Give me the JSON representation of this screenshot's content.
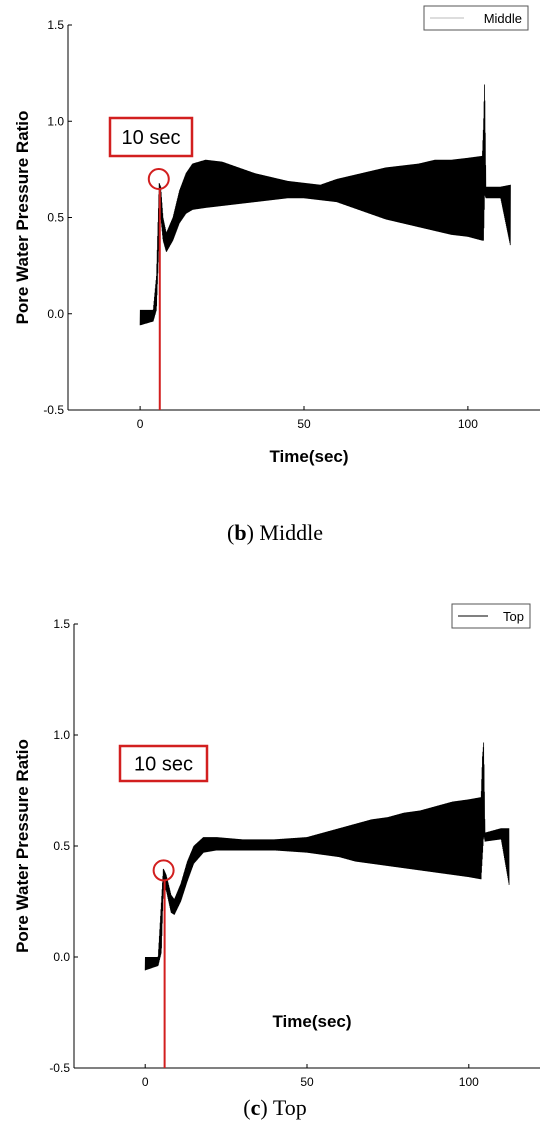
{
  "chart_data": [
    {
      "type": "line",
      "panel_caption": {
        "letter": "b",
        "text": "Middle"
      },
      "xlabel": "Time(sec)",
      "ylabel": "Pore Water Pressure Ratio",
      "xlim": [
        -22,
        122
      ],
      "ylim": [
        -0.5,
        1.5
      ],
      "xticks": [
        0,
        50,
        100
      ],
      "yticks": [
        -0.5,
        0.0,
        0.5,
        1.0,
        1.5
      ],
      "grid": false,
      "legend": {
        "position": "top-right",
        "entries": [
          "Middle"
        ]
      },
      "annotation": {
        "text": "10 sec",
        "marker_x": 6,
        "marker_y": 0.7
      },
      "series": [
        {
          "name": "Middle",
          "color": "#000000",
          "envelope_upper": [
            [
              0,
              0.02
            ],
            [
              4,
              0.02
            ],
            [
              5,
              0.2
            ],
            [
              5.8,
              0.68
            ],
            [
              6.3,
              0.66
            ],
            [
              7,
              0.5
            ],
            [
              8,
              0.42
            ],
            [
              10,
              0.5
            ],
            [
              12,
              0.64
            ],
            [
              14,
              0.73
            ],
            [
              16,
              0.78
            ],
            [
              20,
              0.8
            ],
            [
              25,
              0.79
            ],
            [
              30,
              0.76
            ],
            [
              35,
              0.73
            ],
            [
              40,
              0.71
            ],
            [
              45,
              0.69
            ],
            [
              50,
              0.68
            ],
            [
              55,
              0.67
            ],
            [
              60,
              0.7
            ],
            [
              65,
              0.72
            ],
            [
              70,
              0.74
            ],
            [
              75,
              0.76
            ],
            [
              80,
              0.77
            ],
            [
              85,
              0.78
            ],
            [
              90,
              0.8
            ],
            [
              95,
              0.8
            ],
            [
              100,
              0.81
            ],
            [
              104.4,
              0.82
            ],
            [
              104.8,
              1.0
            ],
            [
              105.1,
              1.22
            ],
            [
              105.5,
              0.66
            ],
            [
              110,
              0.66
            ],
            [
              113,
              0.67
            ]
          ],
          "envelope_lower": [
            [
              0,
              -0.06
            ],
            [
              4,
              -0.04
            ],
            [
              5,
              0.02
            ],
            [
              5.8,
              0.4
            ],
            [
              6.3,
              0.5
            ],
            [
              7,
              0.38
            ],
            [
              8,
              0.32
            ],
            [
              10,
              0.38
            ],
            [
              12,
              0.47
            ],
            [
              14,
              0.52
            ],
            [
              16,
              0.54
            ],
            [
              20,
              0.55
            ],
            [
              25,
              0.56
            ],
            [
              30,
              0.57
            ],
            [
              35,
              0.58
            ],
            [
              40,
              0.59
            ],
            [
              45,
              0.6
            ],
            [
              50,
              0.6
            ],
            [
              55,
              0.59
            ],
            [
              60,
              0.58
            ],
            [
              65,
              0.55
            ],
            [
              70,
              0.52
            ],
            [
              75,
              0.49
            ],
            [
              80,
              0.47
            ],
            [
              85,
              0.45
            ],
            [
              90,
              0.43
            ],
            [
              95,
              0.41
            ],
            [
              100,
              0.4
            ],
            [
              104.4,
              0.38
            ],
            [
              104.8,
              0.38
            ],
            [
              105.1,
              0.62
            ],
            [
              105.5,
              0.6
            ],
            [
              110,
              0.6
            ],
            [
              113,
              0.35
            ]
          ]
        }
      ]
    },
    {
      "type": "line",
      "panel_caption": {
        "letter": "c",
        "text": "Top"
      },
      "xlabel": "Time(sec)",
      "ylabel": "Pore Water Pressure Ratio",
      "xlim": [
        -22,
        122
      ],
      "ylim": [
        -0.5,
        1.5
      ],
      "xticks": [
        0,
        50,
        100
      ],
      "yticks": [
        -0.5,
        0.0,
        0.5,
        1.0,
        1.5
      ],
      "grid": false,
      "legend": {
        "position": "top-right",
        "entries": [
          "Top"
        ]
      },
      "annotation": {
        "text": "10 sec",
        "marker_x": 6,
        "marker_y": 0.39
      },
      "series": [
        {
          "name": "Top",
          "color": "#000000",
          "envelope_upper": [
            [
              0,
              0.0
            ],
            [
              4,
              0.0
            ],
            [
              5,
              0.25
            ],
            [
              5.6,
              0.4
            ],
            [
              6.5,
              0.37
            ],
            [
              8,
              0.28
            ],
            [
              9,
              0.26
            ],
            [
              11,
              0.33
            ],
            [
              13,
              0.43
            ],
            [
              15,
              0.5
            ],
            [
              18,
              0.54
            ],
            [
              22,
              0.54
            ],
            [
              30,
              0.53
            ],
            [
              40,
              0.53
            ],
            [
              50,
              0.54
            ],
            [
              55,
              0.56
            ],
            [
              60,
              0.58
            ],
            [
              65,
              0.6
            ],
            [
              70,
              0.62
            ],
            [
              75,
              0.63
            ],
            [
              80,
              0.65
            ],
            [
              85,
              0.66
            ],
            [
              90,
              0.68
            ],
            [
              95,
              0.7
            ],
            [
              100,
              0.71
            ],
            [
              103.8,
              0.72
            ],
            [
              104.2,
              0.9
            ],
            [
              104.6,
              0.97
            ],
            [
              105,
              0.56
            ],
            [
              110,
              0.58
            ],
            [
              112.5,
              0.58
            ]
          ],
          "envelope_lower": [
            [
              0,
              -0.06
            ],
            [
              4,
              -0.04
            ],
            [
              5,
              0.02
            ],
            [
              5.6,
              0.3
            ],
            [
              6.5,
              0.3
            ],
            [
              8,
              0.2
            ],
            [
              9,
              0.19
            ],
            [
              11,
              0.25
            ],
            [
              13,
              0.34
            ],
            [
              15,
              0.42
            ],
            [
              18,
              0.47
            ],
            [
              22,
              0.48
            ],
            [
              30,
              0.48
            ],
            [
              40,
              0.48
            ],
            [
              50,
              0.47
            ],
            [
              55,
              0.46
            ],
            [
              60,
              0.45
            ],
            [
              65,
              0.43
            ],
            [
              70,
              0.42
            ],
            [
              75,
              0.41
            ],
            [
              80,
              0.4
            ],
            [
              85,
              0.39
            ],
            [
              90,
              0.38
            ],
            [
              95,
              0.37
            ],
            [
              100,
              0.36
            ],
            [
              103.8,
              0.35
            ],
            [
              104.2,
              0.45
            ],
            [
              104.6,
              0.55
            ],
            [
              105,
              0.52
            ],
            [
              110,
              0.53
            ],
            [
              112.5,
              0.32
            ]
          ]
        }
      ]
    }
  ]
}
